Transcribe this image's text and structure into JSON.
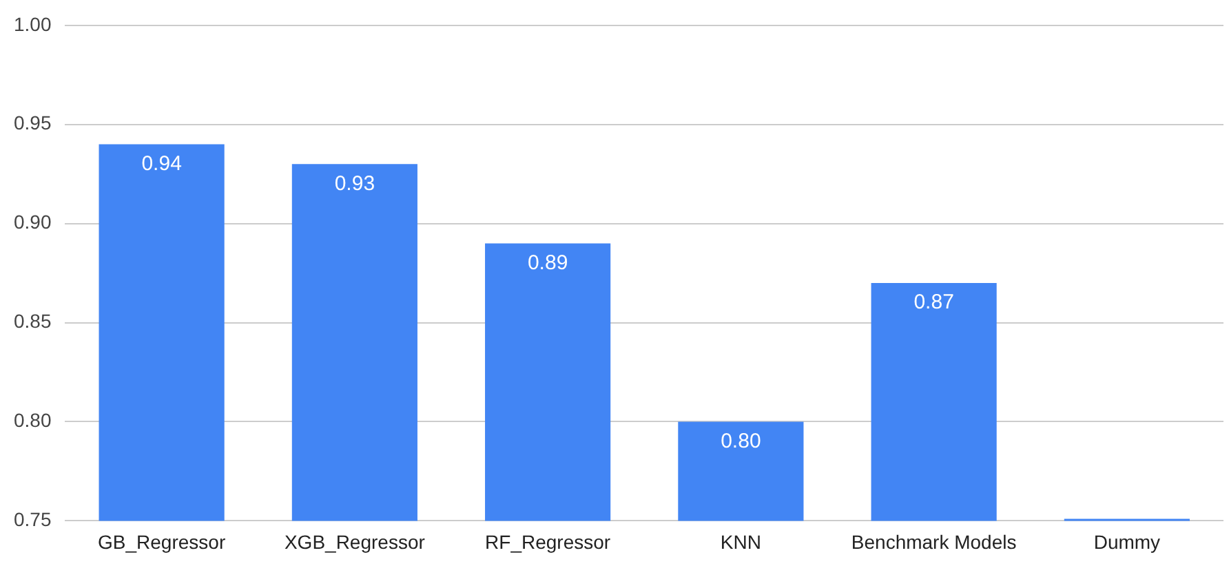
{
  "chart_data": {
    "type": "bar",
    "categories": [
      "GB_Regressor",
      "XGB_Regressor",
      "RF_Regressor",
      "KNN",
      "Benchmark Models",
      "Dummy"
    ],
    "values": [
      0.94,
      0.93,
      0.89,
      0.8,
      0.87,
      0.751
    ],
    "value_labels": [
      "0.94",
      "0.93",
      "0.89",
      "0.80",
      "0.87",
      null
    ],
    "color": "#4285f4",
    "ylim": [
      0.75,
      1.0
    ],
    "yticks": [
      {
        "value": 0.75,
        "label": "0.75"
      },
      {
        "value": 0.8,
        "label": "0.80"
      },
      {
        "value": 0.85,
        "label": "0.85"
      },
      {
        "value": 0.9,
        "label": "0.90"
      },
      {
        "value": 0.95,
        "label": "0.95"
      },
      {
        "value": 1.0,
        "label": "1.00"
      }
    ],
    "grid": "y",
    "legend": false
  }
}
